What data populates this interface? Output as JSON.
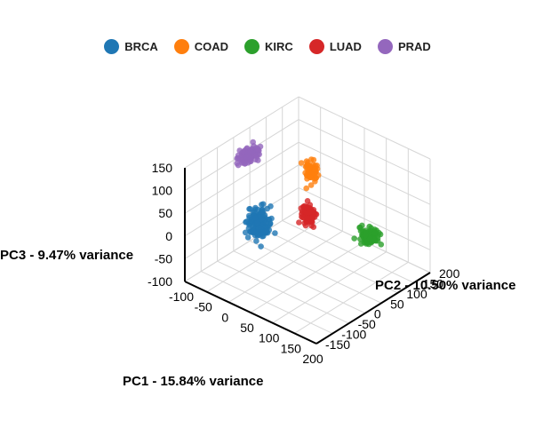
{
  "chart_data": {
    "type": "scatter",
    "projection": "3d",
    "legend_position": "top-center",
    "grid": true,
    "axes": {
      "x": {
        "label": "PC1 - 15.84% variance",
        "ticks": [
          -100,
          -50,
          0,
          50,
          100,
          150,
          200
        ]
      },
      "y": {
        "label": "PC2 - 10.50% variance",
        "ticks": [
          -150,
          -100,
          -50,
          0,
          50,
          100,
          150,
          200
        ]
      },
      "z": {
        "label": "PC3 - 9.47% variance",
        "ticks": [
          -100,
          -50,
          0,
          50,
          100,
          150
        ]
      }
    },
    "series": [
      {
        "name": "BRCA",
        "color": "#1f77b4",
        "count": 160,
        "center": [
          -20,
          -30,
          10
        ],
        "spread": [
          22,
          22,
          30
        ]
      },
      {
        "name": "COAD",
        "color": "#ff7f0e",
        "count": 70,
        "center": [
          45,
          45,
          120
        ],
        "spread": [
          10,
          12,
          22
        ]
      },
      {
        "name": "KIRC",
        "color": "#2ca02c",
        "count": 110,
        "center": [
          120,
          120,
          -20
        ],
        "spread": [
          18,
          14,
          16
        ]
      },
      {
        "name": "LUAD",
        "color": "#d62728",
        "count": 120,
        "center": [
          45,
          35,
          30
        ],
        "spread": [
          14,
          12,
          18
        ]
      },
      {
        "name": "PRAD",
        "color": "#9467bd",
        "count": 100,
        "center": [
          -75,
          15,
          115
        ],
        "spread": [
          10,
          30,
          16
        ]
      }
    ]
  }
}
